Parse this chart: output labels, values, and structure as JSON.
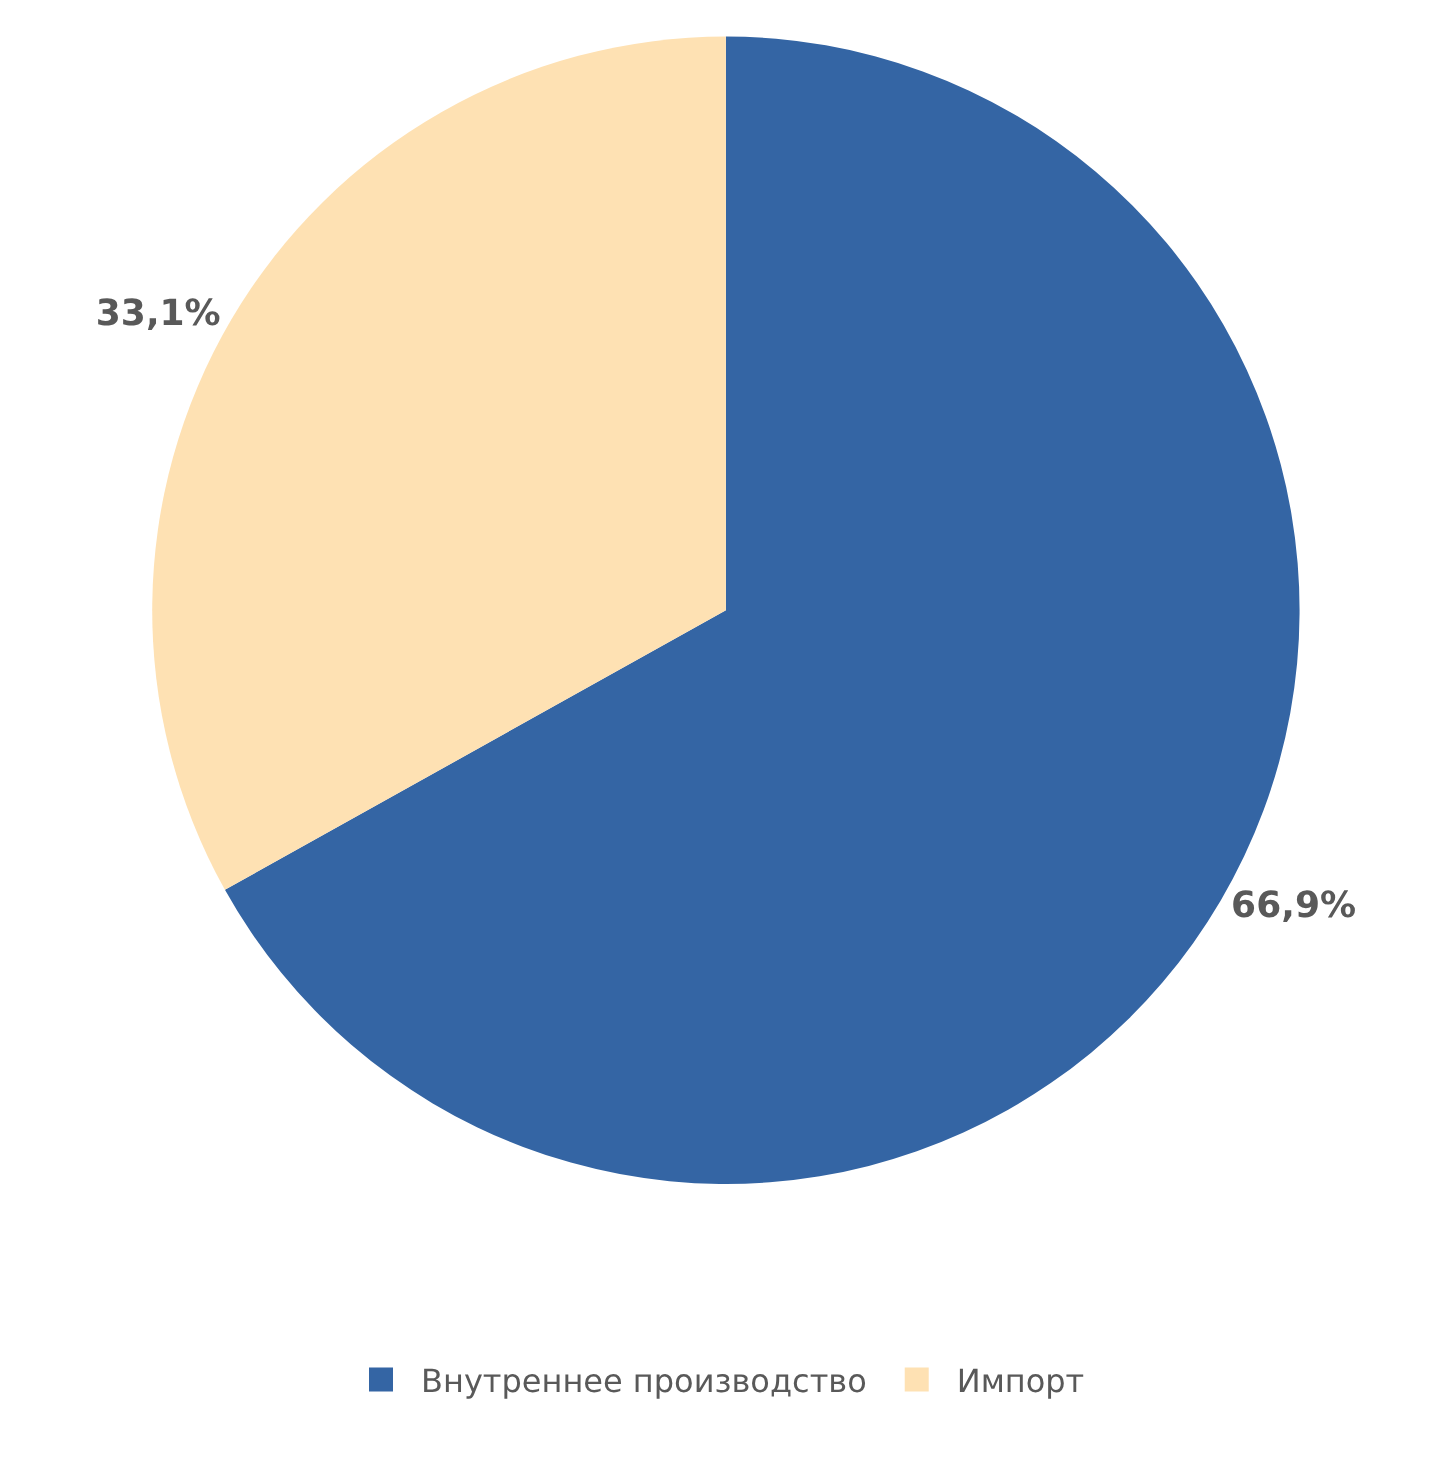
{
  "chart_data": {
    "type": "pie",
    "categories": [
      "Внутреннее производство",
      "Импорт"
    ],
    "values": [
      66.9,
      33.1
    ],
    "colors": [
      "#3465a4",
      "#fee1b3"
    ],
    "value_labels": [
      "66,9%",
      "33,1%"
    ],
    "legend": "bottom"
  }
}
